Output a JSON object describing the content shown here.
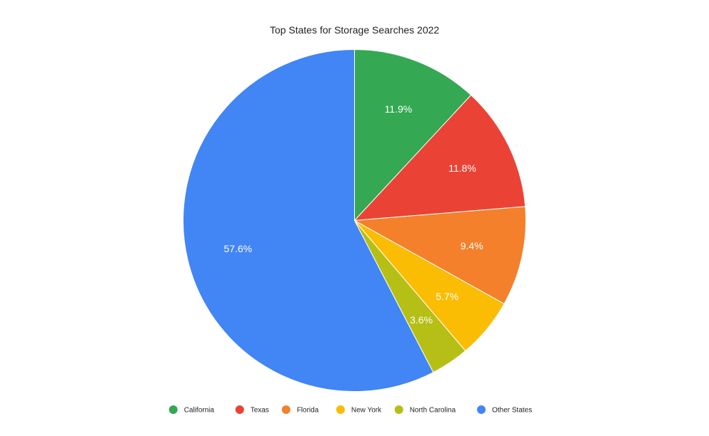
{
  "chart_data": {
    "type": "pie",
    "title": "Top States for Storage Searches 2022",
    "slices": [
      {
        "label": "California",
        "value": 11.9,
        "display": "11.9%",
        "color": "#34a853"
      },
      {
        "label": "Texas",
        "value": 11.8,
        "display": "11.8%",
        "color": "#ea4335"
      },
      {
        "label": "Florida",
        "value": 9.4,
        "display": "9.4%",
        "color": "#f4802b"
      },
      {
        "label": "New York",
        "value": 5.7,
        "display": "5.7%",
        "color": "#fbbc04"
      },
      {
        "label": "North Carolina",
        "value": 3.6,
        "display": "3.6%",
        "color": "#b5bf15"
      },
      {
        "label": "Other States",
        "value": 57.6,
        "display": "57.6%",
        "color": "#4285f4"
      }
    ],
    "legend_position": "bottom",
    "start_angle": "12 o'clock, clockwise"
  }
}
